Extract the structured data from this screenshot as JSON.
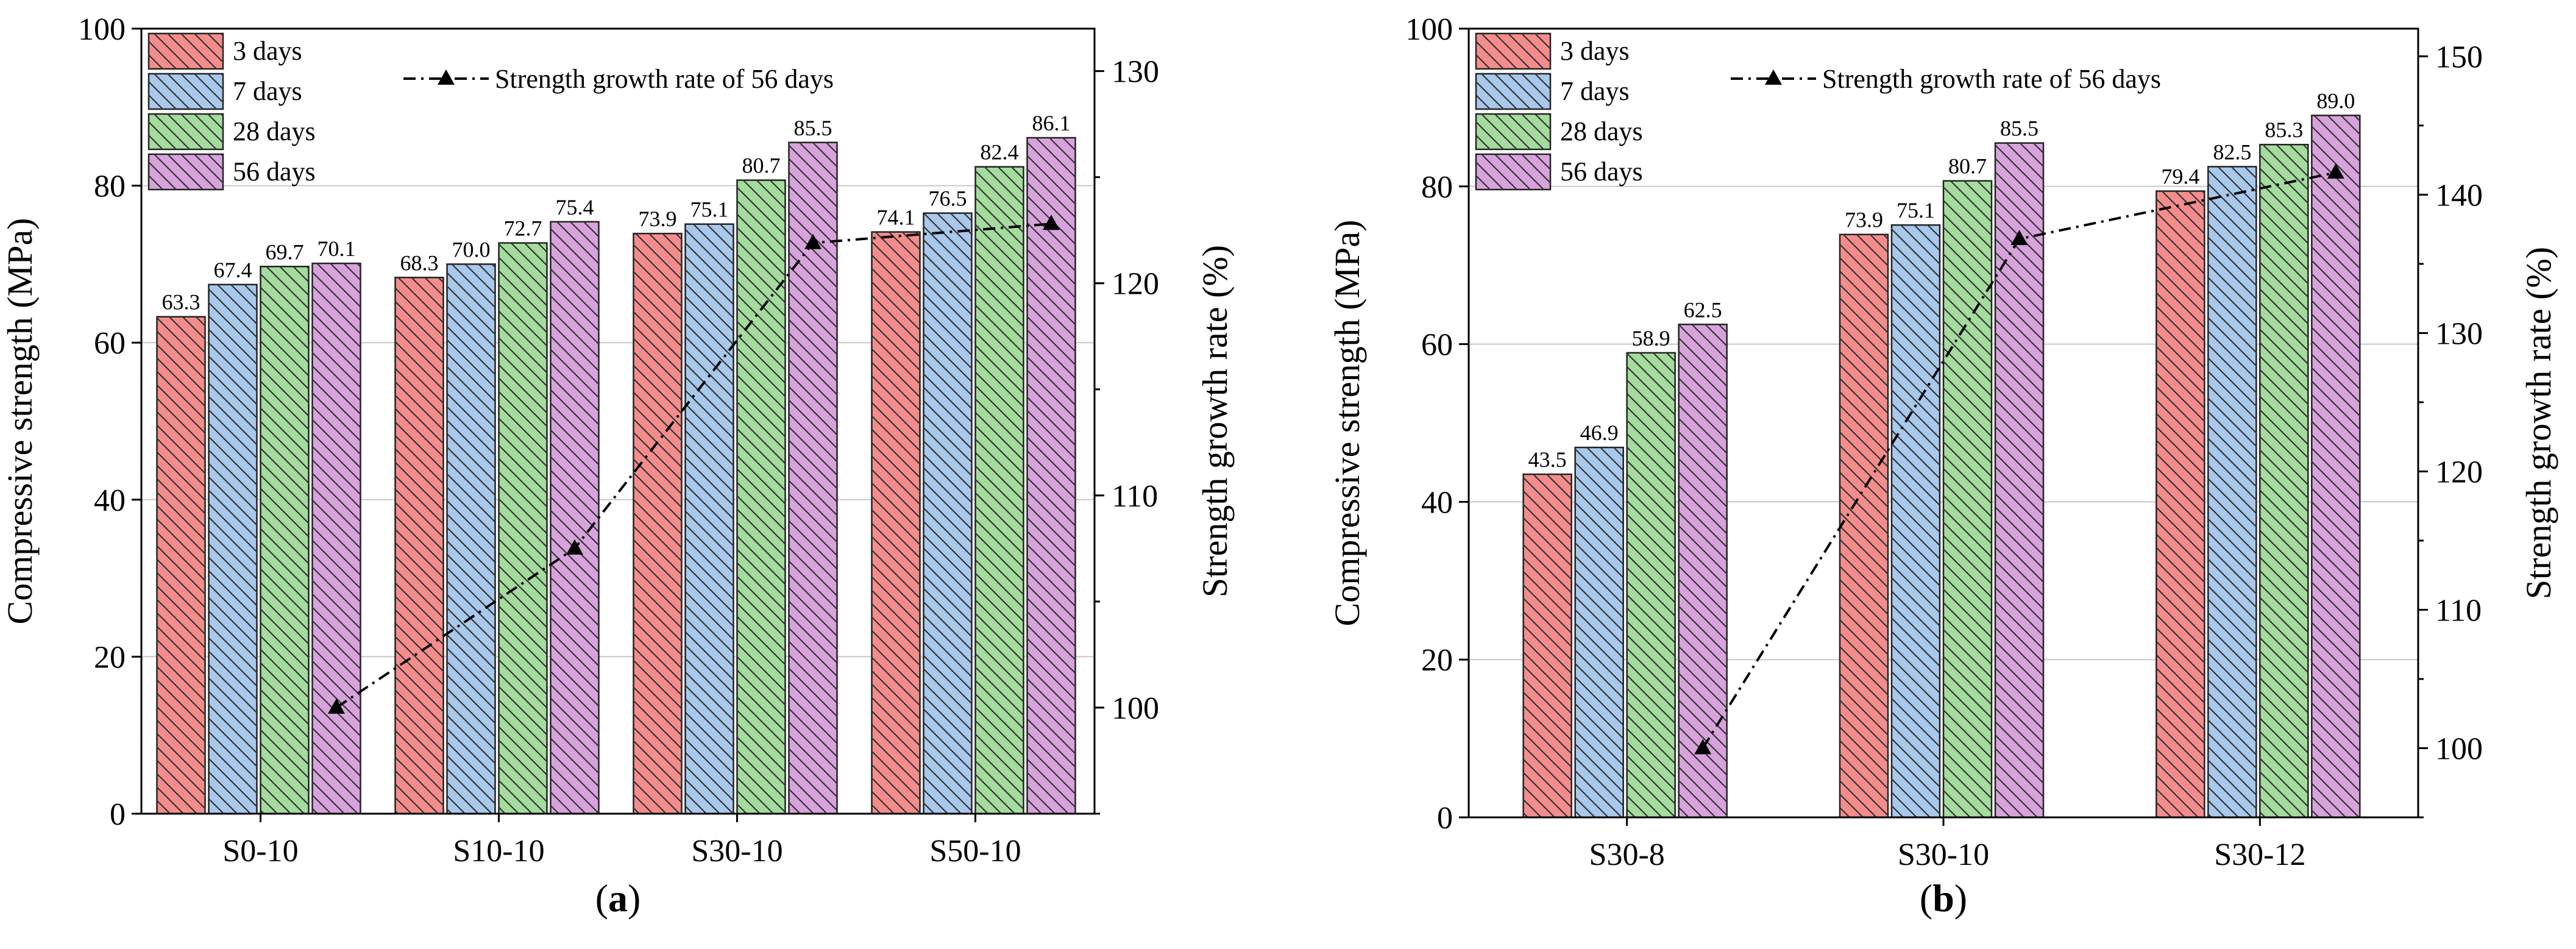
{
  "colors": {
    "3 days": "#f58c8c",
    "7 days": "#a8c8ec",
    "28 days": "#a3dc9c",
    "56 days": "#d8a3dc",
    "line": "#000000"
  },
  "chart_data": [
    {
      "panel": "(a)",
      "panel_letter": "a",
      "type": "bar",
      "categories": [
        "S0-10",
        "S10-10",
        "S30-10",
        "S50-10"
      ],
      "series": [
        {
          "name": "3 days",
          "values": [
            63.3,
            68.3,
            73.9,
            74.1
          ]
        },
        {
          "name": "7 days",
          "values": [
            67.4,
            70.0,
            75.1,
            76.5
          ]
        },
        {
          "name": "28 days",
          "values": [
            69.7,
            72.7,
            80.7,
            82.4
          ]
        },
        {
          "name": "56 days",
          "values": [
            70.1,
            75.4,
            85.5,
            86.1
          ]
        }
      ],
      "value_labels": [
        [
          "63.3",
          "68.3",
          "73.9",
          "74.1"
        ],
        [
          "67.4",
          "70.0",
          "75.1",
          "76.5"
        ],
        [
          "69.7",
          "72.7",
          "80.7",
          "82.4"
        ],
        [
          "70.1",
          "75.4",
          "85.5",
          "86.1"
        ]
      ],
      "line_series": {
        "name": "Strength growth rate of 56 days",
        "values": [
          100,
          107.5,
          121.9,
          122.8
        ]
      },
      "ylabel": "Compressive strength (MPa)",
      "y2label": "Strength growth rate (%)",
      "ylim": [
        0,
        100
      ],
      "yticks": [
        "0",
        "20",
        "40",
        "60",
        "80",
        "100"
      ],
      "y2lim": [
        95,
        132
      ],
      "y2ticks": [
        "100",
        "110",
        "120",
        "130"
      ],
      "grid": true,
      "legend": "top-left"
    },
    {
      "panel": "(b)",
      "panel_letter": "b",
      "type": "bar",
      "categories": [
        "S30-8",
        "S30-10",
        "S30-12"
      ],
      "series": [
        {
          "name": "3 days",
          "values": [
            43.5,
            73.9,
            79.4
          ]
        },
        {
          "name": "7 days",
          "values": [
            46.9,
            75.1,
            82.5
          ]
        },
        {
          "name": "28 days",
          "values": [
            58.9,
            80.7,
            85.3
          ]
        },
        {
          "name": "56 days",
          "values": [
            62.5,
            85.5,
            89.0
          ]
        }
      ],
      "value_labels": [
        [
          "43.5",
          "73.9",
          "79.4"
        ],
        [
          "46.9",
          "75.1",
          "82.5"
        ],
        [
          "58.9",
          "80.7",
          "85.3"
        ],
        [
          "62.5",
          "85.5",
          "89.0"
        ]
      ],
      "line_series": {
        "name": "Strength growth rate of 56 days",
        "values": [
          100,
          136.8,
          141.6
        ]
      },
      "ylabel": "Compressive strength (MPa)",
      "y2label": "Strength growth rate (%)",
      "ylim": [
        0,
        100
      ],
      "yticks": [
        "0",
        "20",
        "40",
        "60",
        "80",
        "100"
      ],
      "y2lim": [
        95,
        152
      ],
      "y2ticks": [
        "100",
        "110",
        "120",
        "130",
        "140",
        "150"
      ],
      "grid": true,
      "legend": "top-left"
    }
  ]
}
